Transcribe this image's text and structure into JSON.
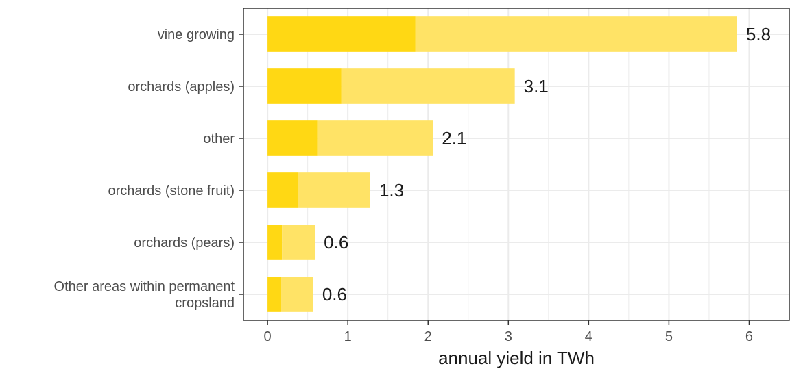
{
  "chart_data": {
    "type": "bar",
    "orientation": "horizontal",
    "stacked": true,
    "categories": [
      "vine growing",
      "orchards (apples)",
      "other",
      "orchards (stone fruit)",
      "orchards (pears)",
      [
        "Other areas within permanent",
        "cropsland"
      ]
    ],
    "series": [
      {
        "values": [
          1.84,
          0.92,
          0.62,
          0.38,
          0.18,
          0.17
        ],
        "color": "#ffd814"
      },
      {
        "values": [
          4.01,
          2.16,
          1.44,
          0.9,
          0.41,
          0.4
        ],
        "color": "#ffe366"
      }
    ],
    "totals": [
      5.85,
      3.08,
      2.06,
      1.28,
      0.59,
      0.57
    ],
    "value_labels": [
      "5.8",
      "3.1",
      "2.1",
      "1.3",
      "0.6",
      "0.6"
    ],
    "x_ticks": [
      0,
      1,
      2,
      3,
      4,
      5,
      6
    ],
    "x_tick_labels": [
      "0",
      "1",
      "2",
      "3",
      "4",
      "5",
      "6"
    ],
    "xlim": [
      -0.3,
      6.5
    ],
    "xlabel": "annual yield in TWh",
    "ylabel": "",
    "grid": true,
    "legend": "none",
    "colors": {
      "grid": "#ebebeb",
      "panel_border": "#333333"
    }
  }
}
